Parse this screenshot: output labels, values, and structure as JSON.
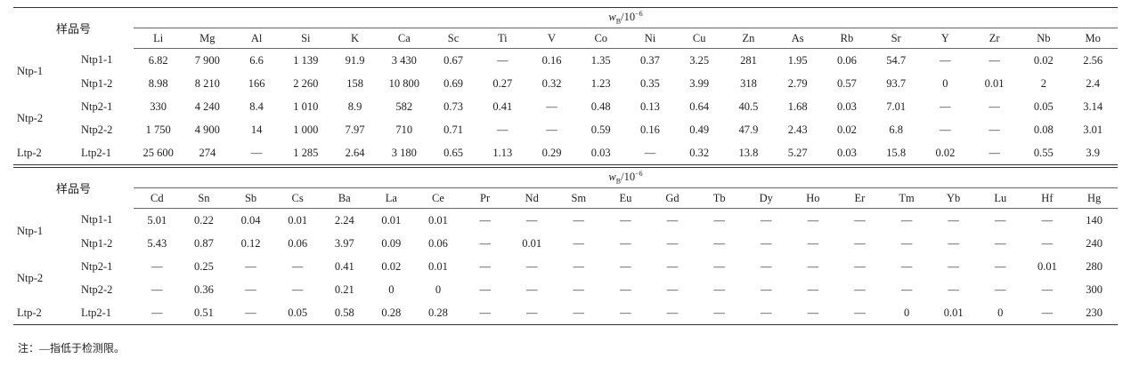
{
  "tables": [
    {
      "header": {
        "sample": "样品号",
        "unit": {
          "symbol": "w",
          "subscript": "B",
          "base": "/10",
          "superscript": "−6"
        },
        "columns": [
          "Li",
          "Mg",
          "Al",
          "Si",
          "K",
          "Ca",
          "Sc",
          "Ti",
          "V",
          "Co",
          "Ni",
          "Cu",
          "Zn",
          "As",
          "Rb",
          "Sr",
          "Y",
          "Zr",
          "Nb",
          "Mo"
        ]
      },
      "groups": [
        {
          "name": "Ntp-1",
          "rows": [
            {
              "sample": "Ntp1-1",
              "values": [
                "6.82",
                "7 900",
                "6.6",
                "1 139",
                "91.9",
                "3 430",
                "0.67",
                "—",
                "0.16",
                "1.35",
                "0.37",
                "3.25",
                "281",
                "1.95",
                "0.06",
                "54.7",
                "—",
                "—",
                "0.02",
                "2.56"
              ]
            },
            {
              "sample": "Ntp1-2",
              "values": [
                "8.98",
                "8 210",
                "166",
                "2 260",
                "158",
                "10 800",
                "0.69",
                "0.27",
                "0.32",
                "1.23",
                "0.35",
                "3.99",
                "318",
                "2.79",
                "0.57",
                "93.7",
                "0",
                "0.01",
                "2",
                "2.4"
              ]
            }
          ]
        },
        {
          "name": "Ntp-2",
          "rows": [
            {
              "sample": "Ntp2-1",
              "values": [
                "330",
                "4 240",
                "8.4",
                "1 010",
                "8.9",
                "582",
                "0.73",
                "0.41",
                "—",
                "0.48",
                "0.13",
                "0.64",
                "40.5",
                "1.68",
                "0.03",
                "7.01",
                "—",
                "—",
                "0.05",
                "3.14"
              ]
            },
            {
              "sample": "Ntp2-2",
              "values": [
                "1 750",
                "4 900",
                "14",
                "1 000",
                "7.97",
                "710",
                "0.71",
                "—",
                "—",
                "0.59",
                "0.16",
                "0.49",
                "47.9",
                "2.43",
                "0.02",
                "6.8",
                "—",
                "—",
                "0.08",
                "3.01"
              ]
            }
          ]
        },
        {
          "name": "Ltp-2",
          "rows": [
            {
              "sample": "Ltp2-1",
              "values": [
                "25 600",
                "274",
                "—",
                "1 285",
                "2.64",
                "3 180",
                "0.65",
                "1.13",
                "0.29",
                "0.03",
                "—",
                "0.32",
                "13.8",
                "5.27",
                "0.03",
                "15.8",
                "0.02",
                "—",
                "0.55",
                "3.9"
              ]
            }
          ]
        }
      ]
    },
    {
      "header": {
        "sample": "样品号",
        "unit": {
          "symbol": "w",
          "subscript": "B",
          "base": "/10",
          "superscript": "−6"
        },
        "columns": [
          "Cd",
          "Sn",
          "Sb",
          "Cs",
          "Ba",
          "La",
          "Ce",
          "Pr",
          "Nd",
          "Sm",
          "Eu",
          "Gd",
          "Tb",
          "Dy",
          "Ho",
          "Er",
          "Tm",
          "Yb",
          "Lu",
          "Hf",
          "Hg"
        ]
      },
      "groups": [
        {
          "name": "Ntp-1",
          "rows": [
            {
              "sample": "Ntp1-1",
              "values": [
                "5.01",
                "0.22",
                "0.04",
                "0.01",
                "2.24",
                "0.01",
                "0.01",
                "—",
                "—",
                "—",
                "—",
                "—",
                "—",
                "—",
                "—",
                "—",
                "—",
                "—",
                "—",
                "—",
                "140"
              ]
            },
            {
              "sample": "Ntp1-2",
              "values": [
                "5.43",
                "0.87",
                "0.12",
                "0.06",
                "3.97",
                "0.09",
                "0.06",
                "—",
                "0.01",
                "—",
                "—",
                "—",
                "—",
                "—",
                "—",
                "—",
                "—",
                "—",
                "—",
                "—",
                "240"
              ]
            }
          ]
        },
        {
          "name": "Ntp-2",
          "rows": [
            {
              "sample": "Ntp2-1",
              "values": [
                "—",
                "0.25",
                "—",
                "—",
                "0.41",
                "0.02",
                "0.01",
                "—",
                "—",
                "—",
                "—",
                "—",
                "—",
                "—",
                "—",
                "—",
                "—",
                "—",
                "—",
                "0.01",
                "280"
              ]
            },
            {
              "sample": "Ntp2-2",
              "values": [
                "—",
                "0.36",
                "—",
                "—",
                "0.21",
                "0",
                "0",
                "—",
                "—",
                "—",
                "—",
                "—",
                "—",
                "—",
                "—",
                "—",
                "—",
                "—",
                "—",
                "—",
                "300"
              ]
            }
          ]
        },
        {
          "name": "Ltp-2",
          "rows": [
            {
              "sample": "Ltp2-1",
              "values": [
                "—",
                "0.51",
                "—",
                "0.05",
                "0.58",
                "0.28",
                "0.28",
                "—",
                "—",
                "—",
                "—",
                "—",
                "—",
                "—",
                "—",
                "—",
                "0",
                "0.01",
                "0",
                "—",
                "230"
              ]
            }
          ]
        }
      ]
    }
  ],
  "note": "注：—指低于检测限。"
}
